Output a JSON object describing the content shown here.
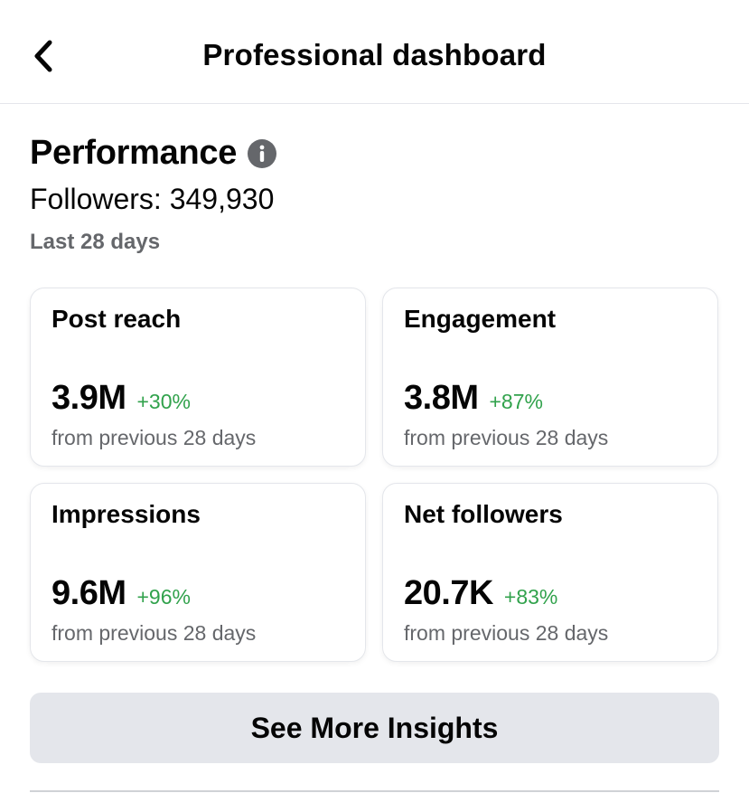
{
  "header": {
    "title": "Professional dashboard",
    "back_icon": "chevron-left-icon"
  },
  "performance": {
    "title": "Performance",
    "info_icon": "info-icon",
    "followers": "Followers: 349,930",
    "period": "Last 28 days"
  },
  "cards": [
    {
      "label": "Post reach",
      "value": "3.9M",
      "change": "+30%",
      "sub": "from previous 28 days"
    },
    {
      "label": "Engagement",
      "value": "3.8M",
      "change": "+87%",
      "sub": "from previous 28 days"
    },
    {
      "label": "Impressions",
      "value": "9.6M",
      "change": "+96%",
      "sub": "from previous 28 days"
    },
    {
      "label": "Net followers",
      "value": "20.7K",
      "change": "+83%",
      "sub": "from previous 28 days"
    }
  ],
  "insights_button": {
    "label": "See More Insights"
  },
  "colors": {
    "positive": "#31a24c",
    "secondary_text": "#65676b",
    "button_bg": "#e4e6eb"
  }
}
